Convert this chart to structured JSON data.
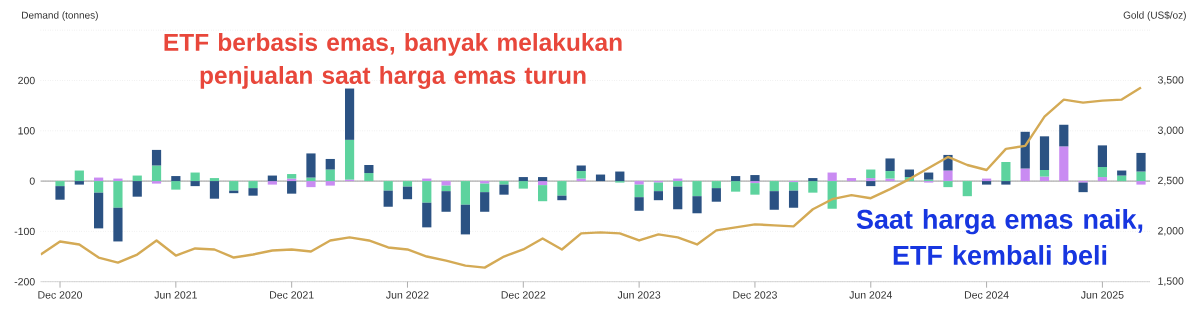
{
  "chart_data": {
    "type": "bar",
    "stacked": true,
    "grid": "y",
    "ylabel": "Demand (tonnes)",
    "y2label": "Gold (US$/oz)",
    "annotations": [
      "ETF berbasis emas, banyak melakukan penjualan saat harga emas turun",
      "Saat harga emas naik, ETF kembali beli"
    ],
    "x": [
      "2020-12",
      "2021-01",
      "2021-02",
      "2021-03",
      "2021-04",
      "2021-05",
      "2021-06",
      "2021-07",
      "2021-08",
      "2021-09",
      "2021-10",
      "2021-11",
      "2021-12",
      "2022-01",
      "2022-02",
      "2022-03",
      "2022-04",
      "2022-05",
      "2022-06",
      "2022-07",
      "2022-08",
      "2022-09",
      "2022-10",
      "2022-11",
      "2022-12",
      "2023-01",
      "2023-02",
      "2023-03",
      "2023-04",
      "2023-05",
      "2023-06",
      "2023-07",
      "2023-08",
      "2023-09",
      "2023-10",
      "2023-11",
      "2023-12",
      "2024-01",
      "2024-02",
      "2024-03",
      "2024-04",
      "2024-05",
      "2024-06",
      "2024-07",
      "2024-08",
      "2024-09",
      "2024-10",
      "2024-11",
      "2024-12",
      "2025-01",
      "2025-02",
      "2025-03",
      "2025-04",
      "2025-05",
      "2025-06",
      "2025-07",
      "2025-08"
    ],
    "xlim": [
      "2020-11",
      "2025-08-15"
    ],
    "xticks": [
      {
        "value": "2020-12",
        "label": "Dec 2020"
      },
      {
        "value": "2021-06",
        "label": "Jun 2021"
      },
      {
        "value": "2021-12",
        "label": "Dec 2021"
      },
      {
        "value": "2022-06",
        "label": "Jun 2022"
      },
      {
        "value": "2022-12",
        "label": "Dec 2022"
      },
      {
        "value": "2023-06",
        "label": "Jun 2023"
      },
      {
        "value": "2023-12",
        "label": "Dec 2023"
      },
      {
        "value": "2024-06",
        "label": "Jun 2024"
      },
      {
        "value": "2024-12",
        "label": "Dec 2024"
      },
      {
        "value": "2025-06",
        "label": "Jun 2025"
      }
    ],
    "ylim": [
      -200,
      300
    ],
    "yticks": [
      -200,
      -100,
      0,
      100,
      200,
      {
        "value": 300,
        "label": null
      }
    ],
    "y2lim": [
      1500,
      4000
    ],
    "y2ticks": [
      {
        "value": 1500,
        "label": "1,500"
      },
      {
        "value": 2000,
        "label": "2,000"
      },
      {
        "value": 2500,
        "label": "2,500"
      },
      {
        "value": 3000,
        "label": "3,000"
      },
      {
        "value": 3500,
        "label": "3,500"
      },
      {
        "value": 4000,
        "label": null
      }
    ],
    "series": [
      {
        "color": "#c98bf2",
        "values": [
          0,
          0,
          7,
          5,
          0,
          -5,
          0,
          0,
          0,
          0,
          0,
          -7,
          5,
          -12,
          -9,
          3,
          0,
          0,
          0,
          5,
          -9,
          0,
          -5,
          0,
          0,
          -8,
          0,
          5,
          0,
          0,
          -7,
          -3,
          5,
          0,
          0,
          0,
          -4,
          0,
          -2,
          0,
          17,
          6,
          6,
          5,
          null,
          -3,
          21,
          0,
          5,
          0,
          25,
          9,
          69,
          -3,
          8,
          0,
          -7
        ]
      },
      {
        "color": "#5dd39e",
        "values": [
          -10,
          21,
          -23,
          -53,
          11,
          31,
          -17,
          17,
          6,
          -19,
          -14,
          0,
          9,
          7,
          23,
          79,
          16,
          -19,
          -11,
          -43,
          -11,
          -47,
          -17,
          -7,
          -15,
          -32,
          -29,
          15,
          0,
          -3,
          -25,
          -17,
          -11,
          -30,
          -14,
          -21,
          -23,
          -20,
          -17,
          -23,
          -55,
          0,
          17,
          15,
          8,
          3,
          -12,
          -30,
          0,
          38,
          0,
          13,
          0,
          0,
          20,
          11,
          19
        ]
      },
      {
        "color": "#2b5283",
        "values": [
          -27,
          -7,
          -71,
          -67,
          -31,
          31,
          10,
          -10,
          -35,
          -5,
          -15,
          11,
          -25,
          48,
          21,
          102,
          16,
          -32,
          -25,
          -49,
          -41,
          -59,
          -39,
          -20,
          8,
          8,
          -9,
          11,
          13,
          19,
          -27,
          -18,
          -45,
          -34,
          -27,
          10,
          12,
          -37,
          -34,
          6,
          0,
          0,
          -10,
          25,
          15,
          14,
          31,
          0,
          -7,
          -7,
          73,
          67,
          43,
          -19,
          43,
          10,
          37
        ]
      },
      {
        "type": "line",
        "axis": "y2",
        "color": "#d4aa55",
        "x": [
          "2020-11",
          "2020-12",
          "2021-01",
          "2021-02",
          "2021-03",
          "2021-04",
          "2021-05",
          "2021-06",
          "2021-07",
          "2021-08",
          "2021-09",
          "2021-10",
          "2021-11",
          "2021-12",
          "2022-01",
          "2022-02",
          "2022-03",
          "2022-04",
          "2022-05",
          "2022-06",
          "2022-07",
          "2022-08",
          "2022-09",
          "2022-10",
          "2022-11",
          "2022-12",
          "2023-01",
          "2023-02",
          "2023-03",
          "2023-04",
          "2023-05",
          "2023-06",
          "2023-07",
          "2023-08",
          "2023-09",
          "2023-10",
          "2023-11",
          "2023-12",
          "2024-01",
          "2024-02",
          "2024-03",
          "2024-04",
          "2024-05",
          "2024-06",
          "2024-07",
          "2024-08",
          "2024-09",
          "2024-10",
          "2024-11",
          "2024-12",
          "2025-01",
          "2025-02",
          "2025-03",
          "2025-04",
          "2025-05",
          "2025-06",
          "2025-07",
          "2025-08"
        ],
        "values": [
          1770,
          1900,
          1870,
          1740,
          1690,
          1770,
          1910,
          1760,
          1830,
          1820,
          1740,
          1770,
          1810,
          1820,
          1800,
          1910,
          1940,
          1910,
          1840,
          1820,
          1750,
          1710,
          1660,
          1640,
          1750,
          1820,
          1930,
          1820,
          1980,
          1990,
          1980,
          1910,
          1970,
          1940,
          1870,
          2010,
          2040,
          2070,
          2060,
          2050,
          2220,
          2320,
          2360,
          2330,
          2420,
          2520,
          2630,
          2740,
          2660,
          2610,
          2820,
          2850,
          3140,
          3310,
          3280,
          3300,
          3310,
          3430
        ]
      }
    ]
  }
}
